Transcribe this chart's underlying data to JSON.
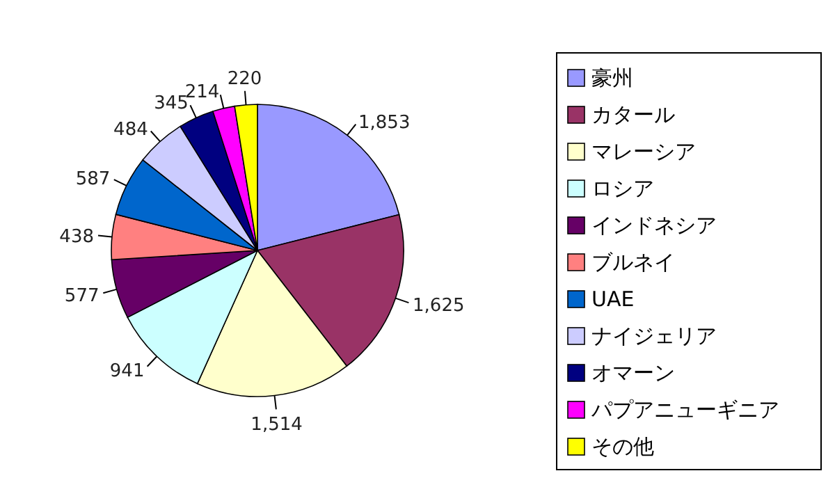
{
  "chart_data": {
    "type": "pie",
    "categories": [
      "豪州",
      "カタール",
      "マレーシア",
      "ロシア",
      "インドネシア",
      "ブルネイ",
      "UAE",
      "ナイジェリア",
      "オマーン",
      "パプアニューギニア",
      "その他"
    ],
    "values": [
      1853,
      1625,
      1514,
      941,
      577,
      438,
      587,
      484,
      345,
      214,
      220
    ],
    "colors": [
      "#9999ff",
      "#993366",
      "#ffffcc",
      "#ccffff",
      "#660066",
      "#ff8080",
      "#0066cc",
      "#ccccff",
      "#000080",
      "#ff00ff",
      "#ffff00"
    ],
    "value_labels": [
      "1,853",
      "1,625",
      "1,514",
      "941",
      "577",
      "438",
      "587",
      "484",
      "345",
      "214",
      "220"
    ],
    "legend": "right"
  }
}
